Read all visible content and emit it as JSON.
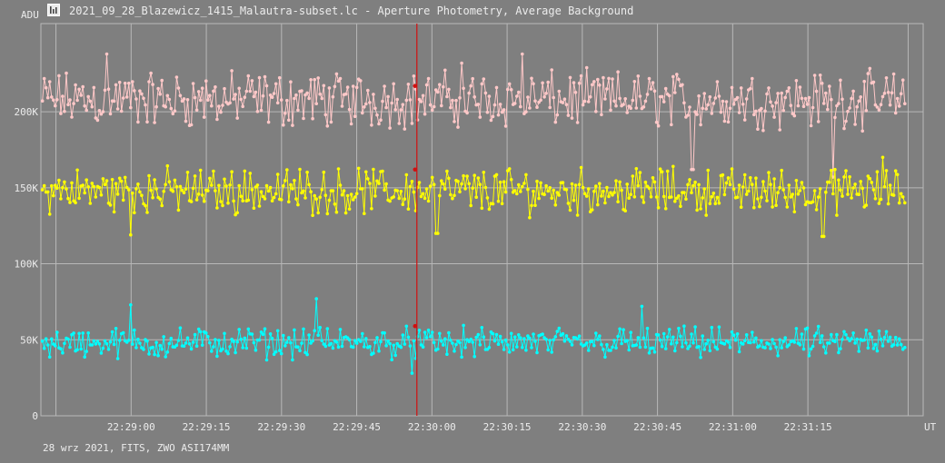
{
  "window": {
    "title": "2021_09_28_Blazewicz_1415_Malautra-subset.lc - Aperture Photometry, Average Background",
    "footer": "28 wrz 2021, FITS, ZWO ASI174MM"
  },
  "colors": {
    "background": "#7f7f7f",
    "grid": "#b8b8b8",
    "text": "#ececec",
    "cursor": "#d01010",
    "series_top": "#ffc8c8",
    "series_mid": "#ffff00",
    "series_bot": "#00ffff"
  },
  "chart_data": {
    "type": "line",
    "ylabel": "ADU",
    "xlabel": "UT",
    "ylim": [
      0,
      258000
    ],
    "yticks": [
      0,
      50000,
      100000,
      150000,
      200000
    ],
    "ytick_labels": [
      "0",
      "50K",
      "100K",
      "150K",
      "200K"
    ],
    "xlim": [
      "22:28:42",
      "22:31:38"
    ],
    "xticks": [
      "22:29:00",
      "22:29:15",
      "22:29:30",
      "22:29:45",
      "22:30:00",
      "22:30:15",
      "22:30:30",
      "22:30:45",
      "22:31:00",
      "22:31:15"
    ],
    "extra_vgrid": [
      "22:28:45",
      "22:31:35"
    ],
    "cursor_x": "22:29:57",
    "grid": true,
    "series": [
      {
        "key": "series_top",
        "mean": 208000,
        "amplitude": 22000,
        "cursor_value": 217000,
        "notable": [
          {
            "x": "22:28:55",
            "y": 238000
          },
          {
            "x": "22:30:06",
            "y": 232000
          },
          {
            "x": "22:30:18",
            "y": 238000
          },
          {
            "x": "22:30:52",
            "y": 162000
          },
          {
            "x": "22:31:20",
            "y": 157000
          }
        ]
      },
      {
        "key": "series_mid",
        "mean": 148000,
        "amplitude": 18000,
        "cursor_value": 162000,
        "notable": [
          {
            "x": "22:29:00",
            "y": 119000
          },
          {
            "x": "22:30:01",
            "y": 120000
          },
          {
            "x": "22:31:18",
            "y": 118000
          },
          {
            "x": "22:31:30",
            "y": 170000
          }
        ]
      },
      {
        "key": "series_bot",
        "mean": 48000,
        "amplitude": 12000,
        "cursor_value": 59000,
        "notable": [
          {
            "x": "22:29:00",
            "y": 73000
          },
          {
            "x": "22:29:37",
            "y": 77000
          },
          {
            "x": "22:29:56",
            "y": 28000
          },
          {
            "x": "22:30:42",
            "y": 72000
          }
        ]
      }
    ]
  }
}
